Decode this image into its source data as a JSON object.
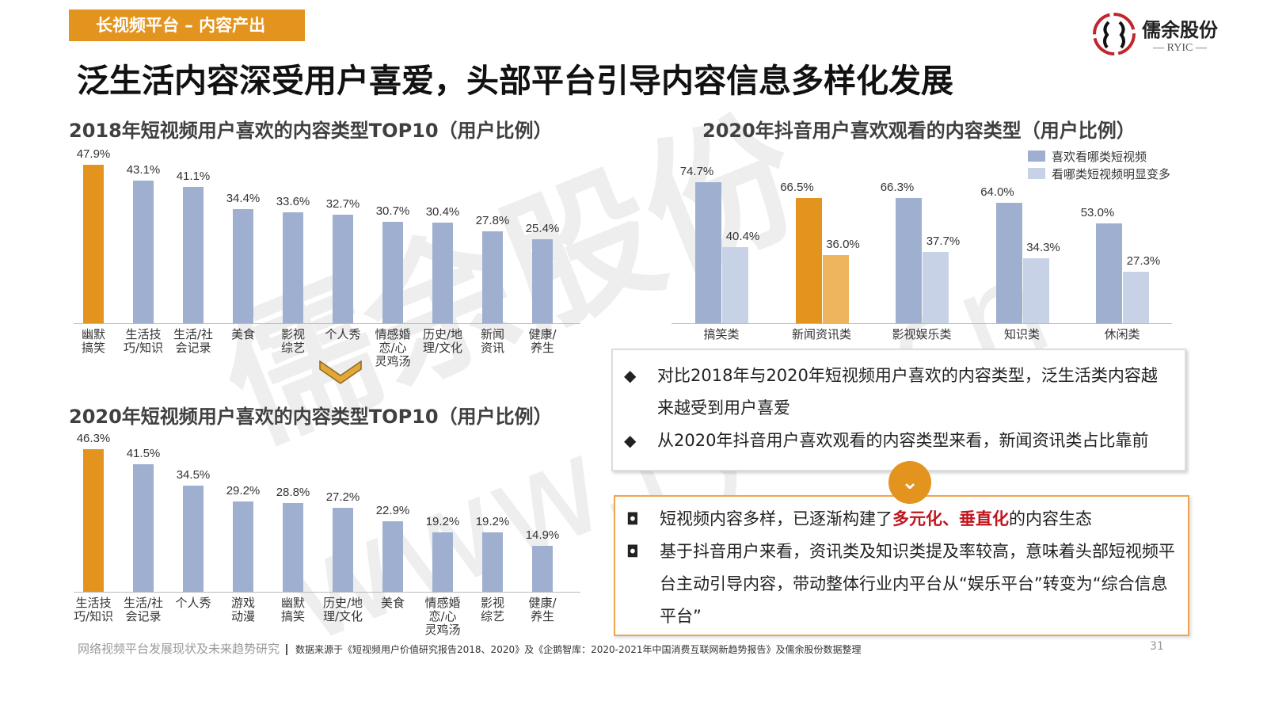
{
  "header": {
    "tag": "长视频平台 – 内容产出",
    "title": "泛生活内容深受用户喜爱，头部平台引导内容信息多样化发展"
  },
  "logo": {
    "name": "儒余股份",
    "sub": "— RYIC —"
  },
  "watermark": {
    "line1": "儒余股份",
    "line2": "www.ryic.cn"
  },
  "colors": {
    "orange": "#E3941F",
    "blue": "#9EAFCF",
    "light_blue": "#C8D2E6",
    "light_orange": "#EFB45E"
  },
  "chart_data": [
    {
      "type": "bar",
      "title": "2018年短视频用户喜欢的内容类型TOP10（用户比例）",
      "categories": [
        "幽默\n搞笑",
        "生活技\n巧/知识",
        "生活/社\n会记录",
        "美食",
        "影视\n综艺",
        "个人秀",
        "情感婚\n恋/心\n灵鸡汤",
        "历史/地\n理/文化",
        "新闻\n资讯",
        "健康/\n养生"
      ],
      "values": [
        47.9,
        43.1,
        41.1,
        34.4,
        33.6,
        32.7,
        30.7,
        30.4,
        27.8,
        25.4
      ],
      "labels": [
        "47.9%",
        "43.1%",
        "41.1%",
        "34.4%",
        "33.6%",
        "32.7%",
        "30.7%",
        "30.4%",
        "27.8%",
        "25.4%"
      ],
      "highlight": 0,
      "ylim": [
        0,
        50
      ]
    },
    {
      "type": "bar",
      "title": "2020年短视频用户喜欢的内容类型TOP10（用户比例）",
      "categories": [
        "生活技\n巧/知识",
        "生活/社\n会记录",
        "个人秀",
        "游戏\n动漫",
        "幽默\n搞笑",
        "历史/地\n理/文化",
        "美食",
        "情感婚\n恋/心\n灵鸡汤",
        "影视\n综艺",
        "健康/\n养生"
      ],
      "values": [
        46.3,
        41.5,
        34.5,
        29.2,
        28.8,
        27.2,
        22.9,
        19.2,
        19.2,
        14.9
      ],
      "labels": [
        "46.3%",
        "41.5%",
        "34.5%",
        "29.2%",
        "28.8%",
        "27.2%",
        "22.9%",
        "19.2%",
        "19.2%",
        "14.9%"
      ],
      "highlight": 0,
      "ylim": [
        0,
        50
      ]
    },
    {
      "type": "bar",
      "title": "2020年抖音用户喜欢观看的内容类型（用户比例）",
      "categories": [
        "搞笑类",
        "新闻资讯类",
        "影视娱乐类",
        "知识类",
        "休闲类"
      ],
      "series": [
        {
          "name": "喜欢看哪类短视频",
          "values": [
            74.7,
            66.5,
            66.3,
            64.0,
            53.0
          ],
          "labels": [
            "74.7%",
            "66.5%",
            "66.3%",
            "64.0%",
            "53.0%"
          ]
        },
        {
          "name": "看哪类短视频明显变多",
          "values": [
            40.4,
            36.0,
            37.7,
            34.3,
            27.3
          ],
          "labels": [
            "40.4%",
            "36.0%",
            "37.7%",
            "34.3%",
            "27.3%"
          ]
        }
      ],
      "highlight": 1,
      "legend": "top-right",
      "ylim": [
        0,
        80
      ]
    }
  ],
  "box1": {
    "bullets": [
      "对比2018年与2020年短视频用户喜欢的内容类型，泛生活类内容越来越受到用户喜爱",
      "从2020年抖音用户喜欢观看的内容类型来看，新闻资讯类占比靠前"
    ]
  },
  "box2": {
    "b1_pre": "短视频内容多样，已逐渐构建了",
    "b1_hl": "多元化、垂直化",
    "b1_post": "的内容生态",
    "b2": "基于抖音用户来看，资讯类及知识类提及率较高，意味着头部短视频平台主动引导内容，带动整体行业内平台从“娱乐平台”转变为“综合信息平台”"
  },
  "footer": {
    "left": "网络视频平台发展现状及未来趋势研究",
    "source": "数据来源于《短视频用户价值研究报告2018、2020》及《企鹅智库：2020-2021年中国消费互联网新趋势报告》及儒余股份数据整理",
    "page": "31"
  }
}
